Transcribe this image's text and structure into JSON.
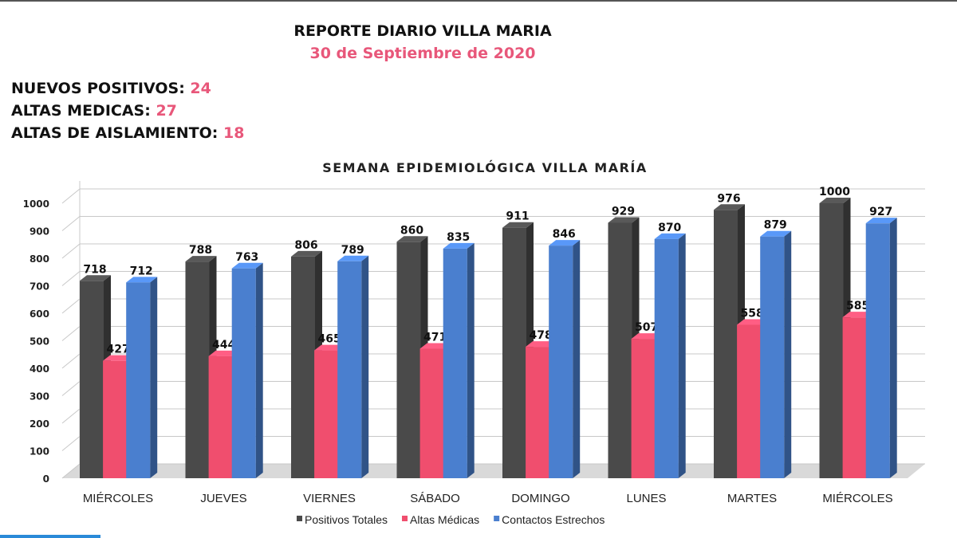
{
  "header": {
    "title": "REPORTE DIARIO VILLA MARIA",
    "date": "30 de Septiembre de 2020"
  },
  "stats": [
    {
      "label": "NUEVOS POSITIVOS:",
      "value": "24"
    },
    {
      "label": "ALTAS MEDICAS:",
      "value": "27"
    },
    {
      "label": "ALTAS DE AISLAMIENTO:",
      "value": "18"
    }
  ],
  "chart_data": {
    "type": "bar",
    "title": "SEMANA EPIDEMIOLÓGICA VILLA MARÍA",
    "categories": [
      "MIÉRCOLES",
      "JUEVES",
      "VIERNES",
      "SÁBADO",
      "DOMINGO",
      "LUNES",
      "MARTES",
      "MIÉRCOLES"
    ],
    "series": [
      {
        "name": "Positivos Totales",
        "color": "#4a4a4a",
        "values": [
          718,
          788,
          806,
          860,
          911,
          929,
          976,
          1000
        ]
      },
      {
        "name": "Altas Médicas",
        "color": "#f04e6e",
        "values": [
          427,
          444,
          465,
          471,
          478,
          507,
          558,
          585
        ]
      },
      {
        "name": "Contactos Estrechos",
        "color": "#4a7fcf",
        "values": [
          712,
          763,
          789,
          835,
          846,
          870,
          879,
          927
        ]
      }
    ],
    "yticks": [
      0,
      100,
      200,
      300,
      400,
      500,
      600,
      700,
      800,
      900,
      1000
    ],
    "ylim": [
      0,
      1000
    ],
    "grid": true,
    "legend": "bottom"
  }
}
